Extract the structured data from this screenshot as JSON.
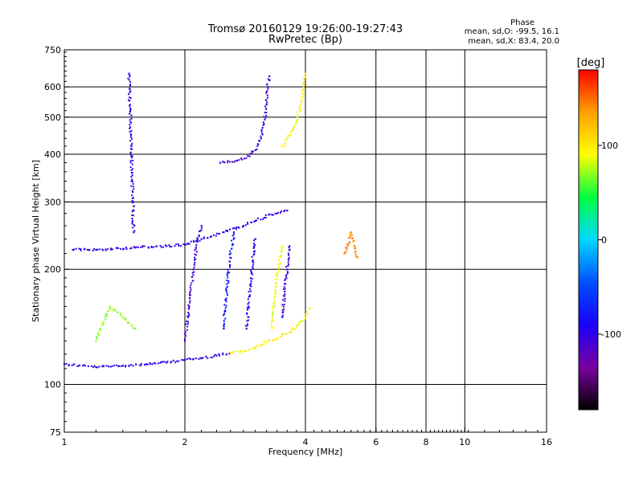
{
  "chart_data": {
    "type": "scatter",
    "title": "Tromsø 20160129 19:26:00-19:27:43",
    "subtitle": "RwPretec (Bp)",
    "phase_box": {
      "title": "Phase",
      "line1": "mean, sd,O: -99.5, 16.1",
      "line2": "mean, sd,X:  83.4, 20.0"
    },
    "xlabel": "Frequency [MHz]",
    "ylabel": "Stationary phase Virtual Height [km]",
    "x_scale": "log",
    "y_scale": "log",
    "xlim": [
      1,
      16
    ],
    "ylim": [
      75,
      750
    ],
    "x_ticks": [
      1,
      2,
      4,
      6,
      8,
      10,
      16
    ],
    "y_ticks": [
      75,
      100,
      200,
      300,
      400,
      500,
      600,
      750
    ],
    "grid": true,
    "colorbar": {
      "label": "[deg]",
      "range": [
        -180,
        180
      ],
      "ticks": [
        100,
        0,
        -100
      ],
      "colors": [
        "#000000",
        "#7a00a0",
        "#1a00ff",
        "#0050ff",
        "#00d8ff",
        "#00ff40",
        "#ffff00",
        "#ffa000",
        "#ff0000"
      ]
    },
    "series": [
      {
        "segments": [
          {
            "x": [
              1.0,
              1.2,
              1.4,
              1.6,
              1.8,
              2.0,
              2.2,
              2.4,
              2.6
            ],
            "y": [
              113,
              111,
              112,
              113,
              114,
              116,
              117,
              119,
              121
            ],
            "phase": -100
          },
          {
            "x": [
              2.6,
              2.8,
              3.0,
              3.2,
              3.4,
              3.6,
              3.8,
              4.0,
              4.1
            ],
            "y": [
              121,
              122,
              125,
              129,
              132,
              136,
              141,
              150,
              158
            ],
            "phase": 95
          },
          {
            "x": [
              1.05,
              1.2,
              1.5,
              1.8,
              2.0,
              2.2,
              2.5,
              2.8,
              3.0,
              3.3,
              3.6
            ],
            "y": [
              225,
              225,
              228,
              230,
              232,
              240,
              250,
              260,
              268,
              278,
              285
            ],
            "phase": -100
          },
          {
            "x": [
              2.45,
              2.7,
              2.9,
              3.0,
              3.1,
              3.15,
              3.2,
              3.22,
              3.25
            ],
            "y": [
              380,
              385,
              395,
              410,
              440,
              480,
              540,
              600,
              640
            ],
            "phase": -105
          },
          {
            "x": [
              3.5,
              3.6,
              3.7,
              3.8,
              3.9,
              3.95,
              4.0
            ],
            "y": [
              420,
              440,
              460,
              490,
              540,
              590,
              650
            ],
            "phase": 95
          },
          {
            "x": [
              1.45,
              1.46,
              1.47,
              1.48,
              1.49
            ],
            "y": [
              650,
              520,
              420,
              320,
              250
            ],
            "phase": -100
          },
          {
            "x": [
              2.0,
              2.05,
              2.1,
              2.15,
              2.2
            ],
            "y": [
              130,
              160,
              200,
              240,
              260
            ],
            "phase": -110
          },
          {
            "x": [
              2.5,
              2.55,
              2.6,
              2.65
            ],
            "y": [
              140,
              180,
              220,
              250
            ],
            "phase": -80
          },
          {
            "x": [
              2.85,
              2.9,
              2.95,
              3.0
            ],
            "y": [
              140,
              170,
              210,
              240
            ],
            "phase": -95
          },
          {
            "x": [
              3.3,
              3.35,
              3.4,
              3.5
            ],
            "y": [
              140,
              170,
              195,
              230
            ],
            "phase": 90
          },
          {
            "x": [
              3.5,
              3.55,
              3.6,
              3.65
            ],
            "y": [
              150,
              175,
              200,
              230
            ],
            "phase": -105
          },
          {
            "x": [
              1.2,
              1.25,
              1.3,
              1.4,
              1.5
            ],
            "y": [
              130,
              145,
              160,
              150,
              140
            ],
            "phase": 70
          },
          {
            "x": [
              5.0,
              5.1,
              5.2,
              5.3,
              5.4
            ],
            "y": [
              220,
              230,
              250,
              230,
              215
            ],
            "phase": 140
          }
        ]
      }
    ]
  }
}
